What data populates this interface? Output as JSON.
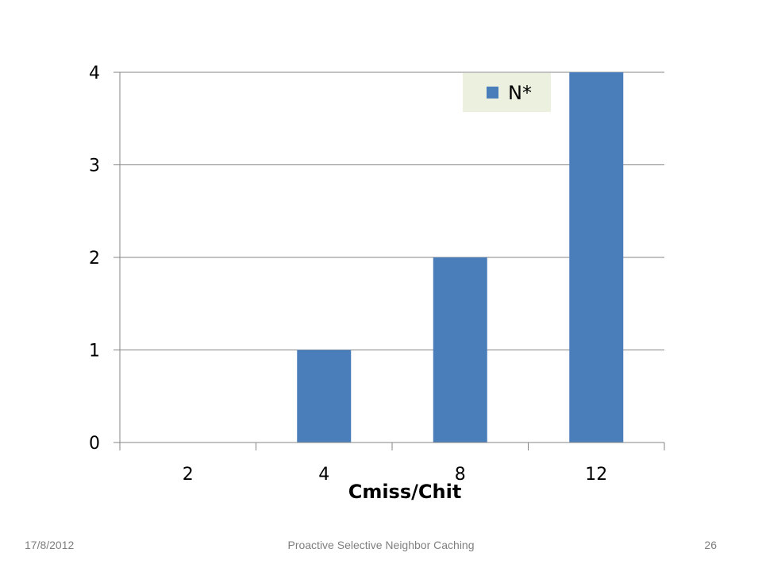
{
  "chart_data": {
    "type": "bar",
    "categories": [
      "2",
      "4",
      "8",
      "12"
    ],
    "series": [
      {
        "name": "N*",
        "values": [
          0,
          1,
          2,
          4
        ]
      }
    ],
    "xlabel": "Cmiss/Chit",
    "ylabel": "",
    "ylim": [
      0,
      4
    ],
    "yticks": [
      "0",
      "1",
      "2",
      "3",
      "4"
    ],
    "grid": true,
    "legend_position": "top-right",
    "colors": {
      "bar": "#4a7ebb",
      "legend_bg": "#ebf1de",
      "grid": "#868686",
      "axis": "#868686"
    }
  },
  "footer": {
    "date": "17/8/2012",
    "title": "Proactive Selective Neighbor Caching",
    "page": "26"
  }
}
